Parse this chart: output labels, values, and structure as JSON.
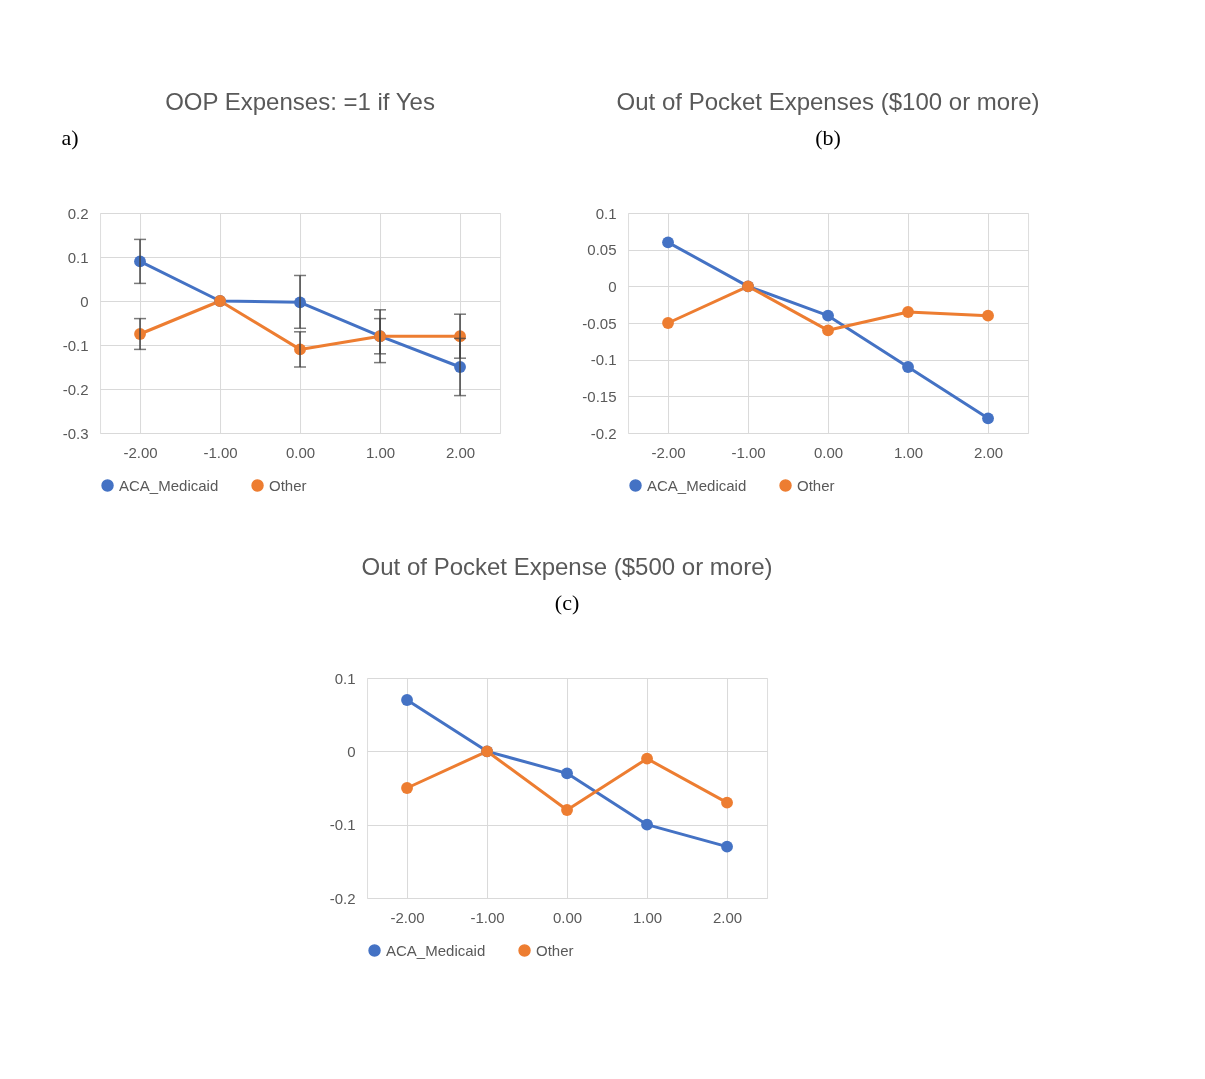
{
  "chart_data": [
    {
      "type": "line",
      "title": "OOP Expenses: =1 if Yes",
      "annotations": [
        "a)"
      ],
      "categories": [
        "-2.00",
        "-1.00",
        "0.00",
        "1.00",
        "2.00"
      ],
      "ylim": [
        -0.3,
        0.2
      ],
      "yticks": [
        -0.3,
        -0.2,
        -0.1,
        0,
        0.1,
        0.2
      ],
      "grid": true,
      "legend": "bottom",
      "marker": "circle",
      "series": [
        {
          "name": "ACA_Medicaid",
          "color": "#4472c4",
          "values": [
            0.09,
            0,
            -0.003,
            -0.08,
            -0.15
          ],
          "errors": [
            [
              0.04,
              0.14
            ],
            null,
            [
              -0.062,
              0.058
            ],
            [
              -0.12,
              -0.04
            ],
            [
              -0.215,
              -0.085
            ]
          ]
        },
        {
          "name": "Other",
          "color": "#ed7d31",
          "values": [
            -0.075,
            0,
            -0.11,
            -0.08,
            -0.08
          ],
          "errors": [
            [
              -0.11,
              -0.04
            ],
            null,
            [
              -0.15,
              -0.07
            ],
            [
              -0.14,
              -0.02
            ],
            [
              -0.13,
              -0.03
            ]
          ]
        }
      ]
    },
    {
      "type": "line",
      "title": "Out of Pocket Expenses ($100 or more)",
      "annotations": [
        "(b)"
      ],
      "categories": [
        "-2.00",
        "-1.00",
        "0.00",
        "1.00",
        "2.00"
      ],
      "ylim": [
        -0.2,
        0.1
      ],
      "yticks": [
        -0.2,
        -0.15,
        -0.1,
        -0.05,
        0,
        0.05,
        0.1
      ],
      "grid": true,
      "legend": "bottom",
      "marker": "circle",
      "series": [
        {
          "name": "ACA_Medicaid",
          "color": "#4472c4",
          "values": [
            0.06,
            0,
            -0.04,
            -0.11,
            -0.18
          ]
        },
        {
          "name": "Other",
          "color": "#ed7d31",
          "values": [
            -0.05,
            0,
            -0.06,
            -0.035,
            -0.04
          ]
        }
      ]
    },
    {
      "type": "line",
      "title": "Out of Pocket Expense ($500 or more)",
      "annotations": [
        "(c)"
      ],
      "categories": [
        "-2.00",
        "-1.00",
        "0.00",
        "1.00",
        "2.00"
      ],
      "ylim": [
        -0.2,
        0.1
      ],
      "yticks": [
        -0.2,
        -0.1,
        0,
        0.1
      ],
      "grid": true,
      "legend": "bottom",
      "marker": "circle",
      "series": [
        {
          "name": "ACA_Medicaid",
          "color": "#4472c4",
          "values": [
            0.07,
            0,
            -0.03,
            -0.1,
            -0.13
          ]
        },
        {
          "name": "Other",
          "color": "#ed7d31",
          "values": [
            -0.05,
            0,
            -0.08,
            -0.01,
            -0.07
          ]
        }
      ]
    }
  ]
}
